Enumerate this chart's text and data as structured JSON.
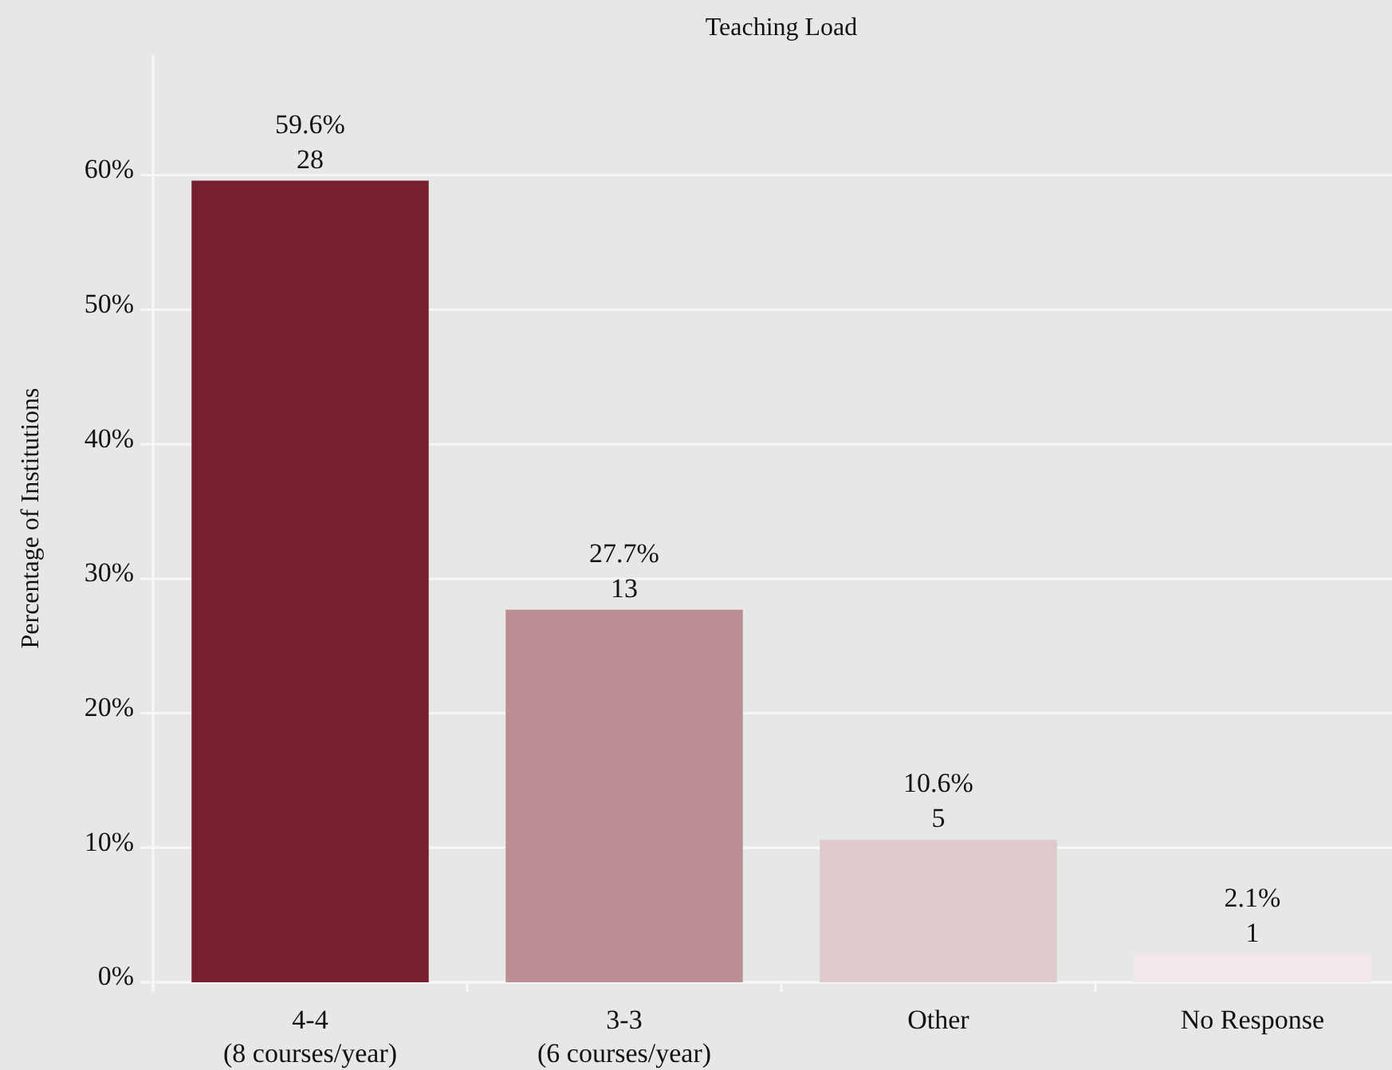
{
  "chart_data": {
    "type": "bar",
    "title": "Teaching Load",
    "ylabel": "Percentage of Institutions",
    "categories": [
      "4-4\n(8 courses/year)",
      "3-3\n(6 courses/year)",
      "Other",
      "No Response"
    ],
    "values": [
      59.6,
      27.7,
      10.6,
      2.1
    ],
    "colors": [
      "#76202f",
      "#bb8e94",
      "#dfc9cc",
      "#f3e8ea"
    ],
    "value_labels": [
      "59.6%\n28",
      "27.7%\n13",
      "10.6%\n5",
      "2.1%\n1"
    ],
    "ylim": [
      0,
      69
    ],
    "yticks": [
      {
        "value": 0,
        "label": "0%"
      },
      {
        "value": 10,
        "label": "10%"
      },
      {
        "value": 20,
        "label": "20%"
      },
      {
        "value": 30,
        "label": "30%"
      },
      {
        "value": 40,
        "label": "40%"
      },
      {
        "value": 50,
        "label": "50%"
      },
      {
        "value": 60,
        "label": "60%"
      }
    ],
    "grid": "y"
  }
}
